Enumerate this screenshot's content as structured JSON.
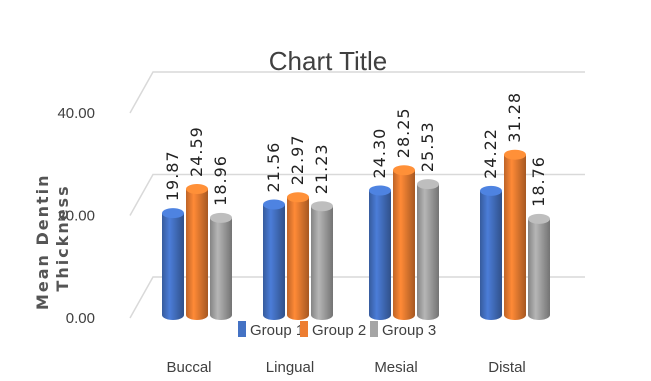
{
  "chart_data": {
    "type": "bar",
    "title": "Chart Title",
    "xlabel": "",
    "ylabel": "Mean Dentin Thickness",
    "ylim": [
      0,
      40
    ],
    "yticks": [
      "0.00",
      "20.00",
      "40.00"
    ],
    "categories": [
      "Buccal",
      "Lingual",
      "Mesial",
      "Distal"
    ],
    "series": [
      {
        "name": "Group 1",
        "color": "#4472C4",
        "values": [
          19.87,
          21.56,
          24.3,
          24.22
        ],
        "labels": [
          "19.87",
          "21.56",
          "24.30",
          "24.22"
        ]
      },
      {
        "name": "Group 2",
        "color": "#ED7D31",
        "values": [
          24.59,
          22.97,
          28.25,
          31.28
        ],
        "labels": [
          "24.59",
          "22.97",
          "28.25",
          "31.28"
        ]
      },
      {
        "name": "Group 3",
        "color": "#A5A5A5",
        "values": [
          18.96,
          21.23,
          25.53,
          18.76
        ],
        "labels": [
          "18.96",
          "21.23",
          "25.53",
          "18.76"
        ]
      }
    ],
    "legend": "bottom",
    "grid": true
  }
}
